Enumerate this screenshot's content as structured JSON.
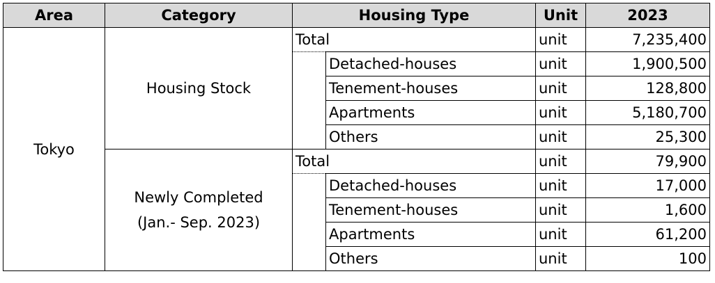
{
  "headers": {
    "area": "Area",
    "category": "Category",
    "housing_type": "Housing Type",
    "unit": "Unit",
    "year": "2023"
  },
  "area": "Tokyo",
  "groups": [
    {
      "category": "Housing Stock",
      "category_line2": "",
      "rows": [
        {
          "type": "Total",
          "unit": "unit",
          "value": "7,235,400"
        },
        {
          "type": "Detached-houses",
          "unit": "unit",
          "value": "1,900,500"
        },
        {
          "type": "Tenement-houses",
          "unit": "unit",
          "value": "128,800"
        },
        {
          "type": "Apartments",
          "unit": "unit",
          "value": "5,180,700"
        },
        {
          "type": "Others",
          "unit": "unit",
          "value": "25,300"
        }
      ]
    },
    {
      "category": "Newly Completed",
      "category_line2": "(Jan.- Sep. 2023)",
      "rows": [
        {
          "type": "Total",
          "unit": "unit",
          "value": "79,900"
        },
        {
          "type": "Detached-houses",
          "unit": "unit",
          "value": "17,000"
        },
        {
          "type": "Tenement-houses",
          "unit": "unit",
          "value": "1,600"
        },
        {
          "type": "Apartments",
          "unit": "unit",
          "value": "61,200"
        },
        {
          "type": "Others",
          "unit": "unit",
          "value": "100"
        }
      ]
    }
  ]
}
